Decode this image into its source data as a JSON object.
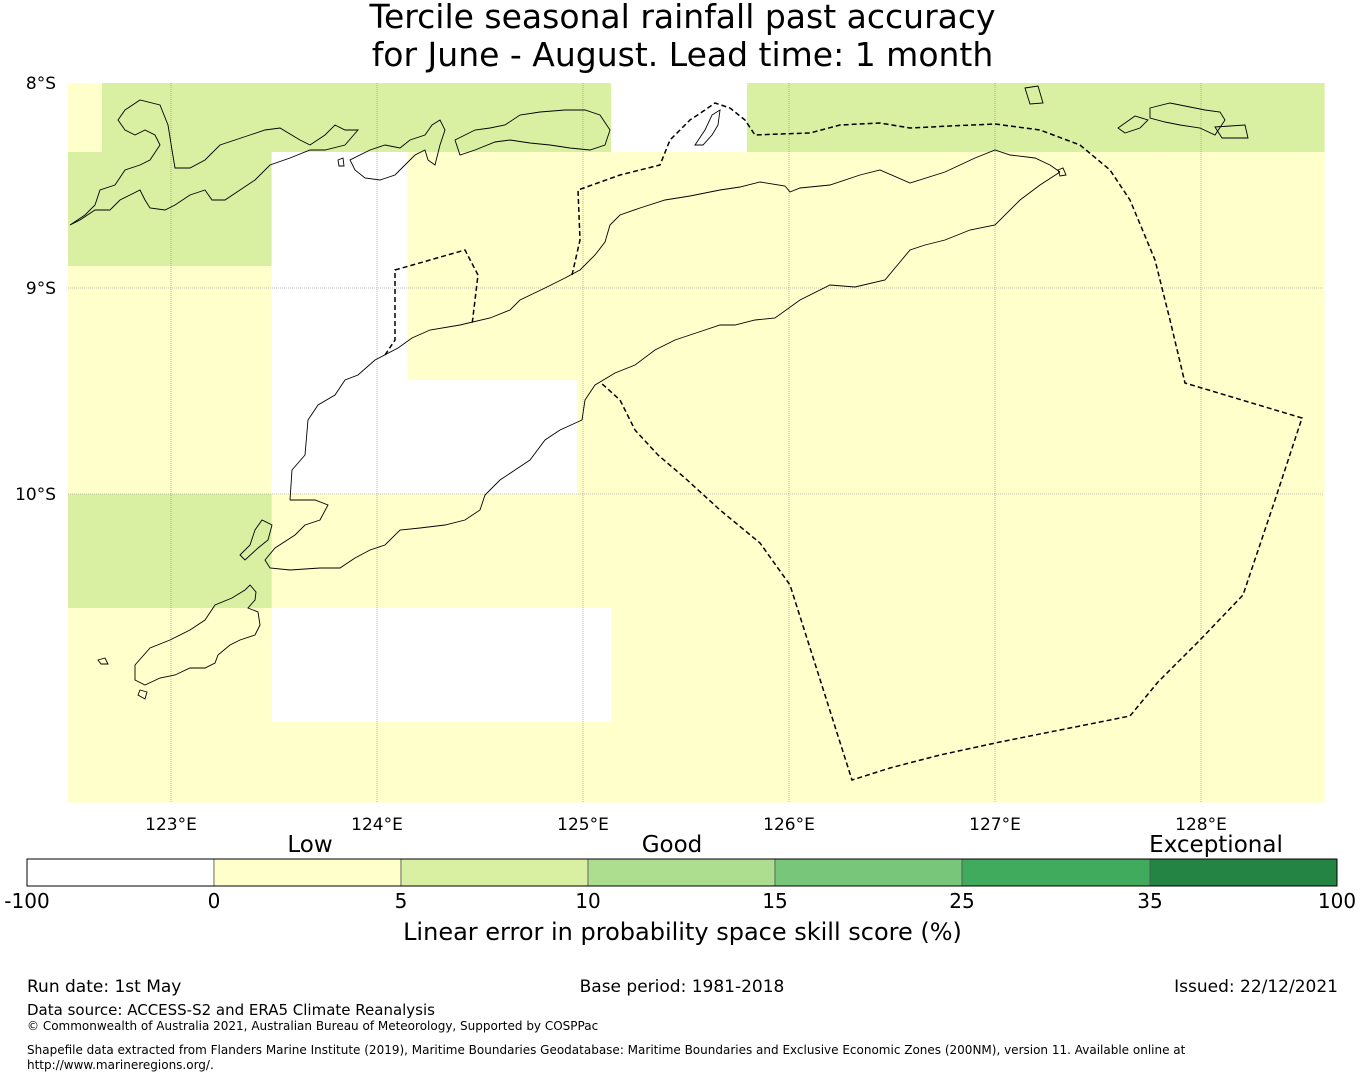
{
  "title": {
    "line1": "Tercile seasonal rainfall past accuracy",
    "line2": "for June - August. Lead time: 1 month"
  },
  "map": {
    "lon_labels": [
      "123°E",
      "124°E",
      "125°E",
      "126°E",
      "127°E",
      "128°E"
    ],
    "lat_labels": [
      "8°S",
      "9°S",
      "10°S"
    ],
    "extent": {
      "lon": [
        122.5,
        128.6
      ],
      "lat": [
        -8.0,
        -11.5
      ]
    },
    "gridlines": true,
    "colors": {
      "none": "#ffffff",
      "low": "#ffffcc",
      "moderate": "#d9f0a3",
      "good": "#addd8e"
    },
    "skill_category_grid": {
      "row_lat_ranges": [
        [
          "-8.00",
          "-8.33"
        ],
        [
          "-8.33",
          "-8.89"
        ],
        [
          "-8.89",
          "-9.44"
        ],
        [
          "-9.44",
          "-10.00"
        ],
        [
          "-10.00",
          "-10.56"
        ],
        [
          "-10.56",
          "-11.11"
        ],
        [
          "-11.11",
          "-11.50"
        ]
      ],
      "rows": [
        [
          "low",
          "moderate",
          "moderate",
          "moderate",
          "moderate",
          "moderate",
          "moderate",
          "moderate",
          "moderate",
          "moderate",
          "moderate",
          "moderate",
          "moderate",
          "moderate",
          "moderate",
          "moderate",
          "none",
          "none",
          "none",
          "none",
          "moderate",
          "moderate",
          "moderate",
          "moderate",
          "moderate",
          "moderate",
          "moderate",
          "moderate",
          "moderate",
          "moderate",
          "moderate",
          "moderate",
          "moderate",
          "moderate",
          "moderate",
          "moderate",
          "moderate"
        ],
        [
          "moderate",
          "moderate",
          "moderate",
          "moderate",
          "moderate",
          "moderate",
          "none",
          "none",
          "none",
          "none",
          "low",
          "low",
          "low",
          "low",
          "low",
          "low",
          "low",
          "low",
          "low",
          "low",
          "low",
          "low",
          "low",
          "low",
          "low",
          "low",
          "low",
          "low",
          "low",
          "low",
          "low",
          "low",
          "low",
          "low",
          "low",
          "low",
          "low"
        ],
        [
          "low",
          "low",
          "low",
          "low",
          "low",
          "low",
          "none",
          "none",
          "none",
          "none",
          "low",
          "low",
          "low",
          "low",
          "low",
          "low",
          "low",
          "low",
          "low",
          "low",
          "low",
          "low",
          "low",
          "low",
          "low",
          "low",
          "low",
          "low",
          "low",
          "low",
          "low",
          "low",
          "low",
          "low",
          "low",
          "low",
          "low"
        ],
        [
          "low",
          "low",
          "low",
          "low",
          "low",
          "low",
          "none",
          "none",
          "none",
          "none",
          "none",
          "none",
          "none",
          "none",
          "none",
          "low",
          "low",
          "low",
          "low",
          "low",
          "low",
          "low",
          "low",
          "low",
          "low",
          "low",
          "low",
          "low",
          "low",
          "low",
          "low",
          "low",
          "low",
          "low",
          "low",
          "low",
          "low"
        ],
        [
          "moderate",
          "moderate",
          "moderate",
          "moderate",
          "moderate",
          "moderate",
          "low",
          "low",
          "low",
          "low",
          "low",
          "low",
          "low",
          "low",
          "low",
          "low",
          "low",
          "low",
          "low",
          "low",
          "low",
          "low",
          "low",
          "low",
          "low",
          "low",
          "low",
          "low",
          "low",
          "low",
          "low",
          "low",
          "low",
          "low",
          "low",
          "low",
          "low"
        ],
        [
          "low",
          "low",
          "low",
          "low",
          "low",
          "low",
          "none",
          "none",
          "none",
          "none",
          "none",
          "none",
          "none",
          "none",
          "none",
          "none",
          "low",
          "low",
          "low",
          "low",
          "low",
          "low",
          "low",
          "low",
          "low",
          "low",
          "low",
          "low",
          "low",
          "low",
          "low",
          "low",
          "low",
          "low",
          "low",
          "low",
          "low"
        ],
        [
          "low",
          "low",
          "low",
          "low",
          "low",
          "low",
          "low",
          "low",
          "low",
          "low",
          "low",
          "low",
          "low",
          "low",
          "low",
          "low",
          "low",
          "low",
          "low",
          "low",
          "low",
          "low",
          "low",
          "low",
          "low",
          "low",
          "low",
          "low",
          "low",
          "low",
          "low",
          "low",
          "low",
          "low",
          "low",
          "low",
          "low"
        ]
      ]
    }
  },
  "colorbar": {
    "category_labels": [
      "Low",
      "Good",
      "Exceptional"
    ],
    "ticks": [
      "-100",
      "0",
      "5",
      "10",
      "15",
      "25",
      "35",
      "100"
    ],
    "colors": [
      "#ffffff",
      "#ffffcc",
      "#d9f0a3",
      "#addd8e",
      "#78c679",
      "#41ab5d",
      "#238443"
    ],
    "label": "Linear error in probability space skill score (%)"
  },
  "footer": {
    "run_date": "Run date: 1st May",
    "base_period": "Base period: 1981-2018",
    "issued": "Issued: 22/12/2021",
    "data_source": "Data source: ACCESS-S2 and ERA5 Climate Reanalysis",
    "copyright": "© Commonwealth of Australia 2021, Australian Bureau of Meteorology, Supported by COSPPac",
    "shapefile_line1": "Shapefile data extracted from Flanders Marine Institute (2019), Maritime Boundaries Geodatabase: Maritime Boundaries and Exclusive Economic Zones (200NM), version 11. Available online at",
    "shapefile_line2": "http://www.marineregions.org/."
  }
}
